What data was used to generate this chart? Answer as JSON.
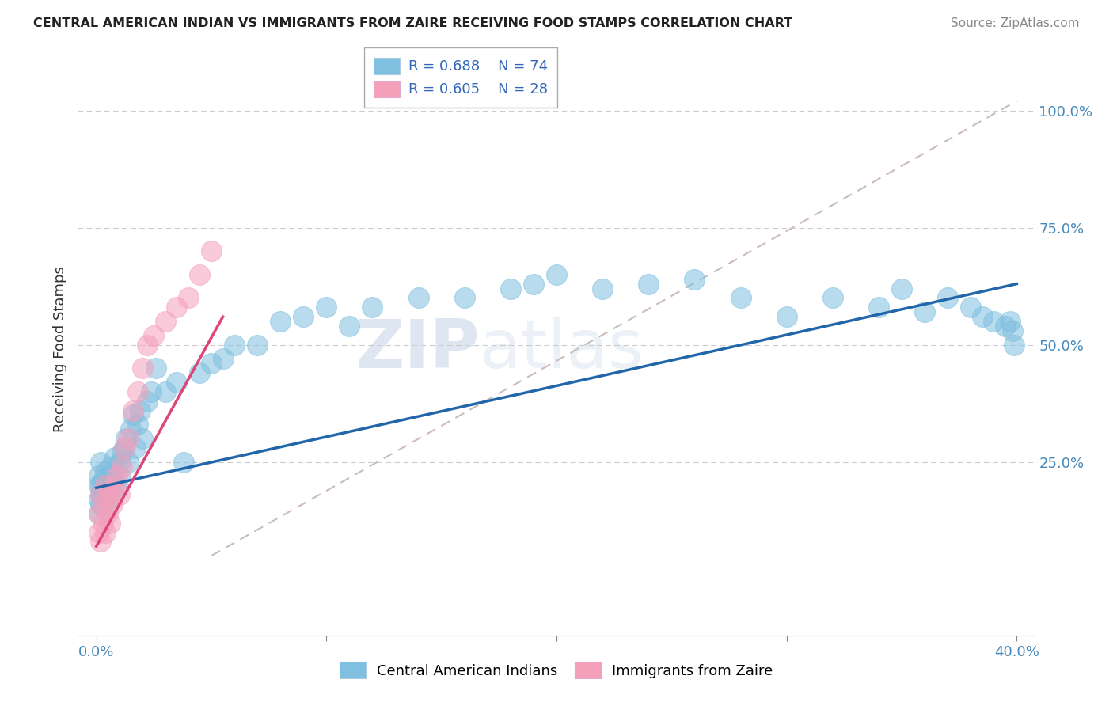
{
  "title": "CENTRAL AMERICAN INDIAN VS IMMIGRANTS FROM ZAIRE RECEIVING FOOD STAMPS CORRELATION CHART",
  "source": "Source: ZipAtlas.com",
  "ylabel": "Receiving Food Stamps",
  "xlim": [
    0.0,
    0.4
  ],
  "ylim": [
    -0.12,
    1.1
  ],
  "legend_r1": "R = 0.688",
  "legend_n1": "N = 74",
  "legend_r2": "R = 0.605",
  "legend_n2": "N = 28",
  "watermark_zip": "ZIP",
  "watermark_atlas": "atlas",
  "blue_color": "#7fbfdf",
  "pink_color": "#f5a0bb",
  "blue_line_color": "#2266aa",
  "pink_line_color": "#dd4477",
  "ref_line_color": "#ccbbbb",
  "grid_color": "#cccccc",
  "blue_x": [
    0.001,
    0.001,
    0.001,
    0.001,
    0.002,
    0.002,
    0.002,
    0.002,
    0.003,
    0.003,
    0.003,
    0.004,
    0.004,
    0.004,
    0.005,
    0.005,
    0.005,
    0.006,
    0.006,
    0.007,
    0.007,
    0.008,
    0.008,
    0.009,
    0.01,
    0.01,
    0.011,
    0.012,
    0.013,
    0.014,
    0.015,
    0.016,
    0.017,
    0.018,
    0.019,
    0.02,
    0.022,
    0.024,
    0.026,
    0.03,
    0.035,
    0.038,
    0.045,
    0.05,
    0.055,
    0.06,
    0.07,
    0.08,
    0.09,
    0.1,
    0.11,
    0.12,
    0.14,
    0.16,
    0.18,
    0.19,
    0.2,
    0.22,
    0.24,
    0.26,
    0.28,
    0.3,
    0.32,
    0.34,
    0.35,
    0.36,
    0.37,
    0.38,
    0.385,
    0.39,
    0.395,
    0.397,
    0.398,
    0.399
  ],
  "blue_y": [
    0.17,
    0.2,
    0.14,
    0.22,
    0.18,
    0.16,
    0.2,
    0.25,
    0.17,
    0.21,
    0.19,
    0.15,
    0.23,
    0.18,
    0.2,
    0.17,
    0.22,
    0.19,
    0.24,
    0.18,
    0.21,
    0.23,
    0.26,
    0.2,
    0.25,
    0.22,
    0.27,
    0.28,
    0.3,
    0.25,
    0.32,
    0.35,
    0.28,
    0.33,
    0.36,
    0.3,
    0.38,
    0.4,
    0.45,
    0.4,
    0.42,
    0.25,
    0.44,
    0.46,
    0.47,
    0.5,
    0.5,
    0.55,
    0.56,
    0.58,
    0.54,
    0.58,
    0.6,
    0.6,
    0.62,
    0.63,
    0.65,
    0.62,
    0.63,
    0.64,
    0.6,
    0.56,
    0.6,
    0.58,
    0.62,
    0.57,
    0.6,
    0.58,
    0.56,
    0.55,
    0.54,
    0.55,
    0.53,
    0.5
  ],
  "pink_x": [
    0.001,
    0.001,
    0.002,
    0.002,
    0.003,
    0.003,
    0.004,
    0.004,
    0.005,
    0.006,
    0.006,
    0.007,
    0.008,
    0.009,
    0.01,
    0.011,
    0.012,
    0.014,
    0.016,
    0.018,
    0.02,
    0.022,
    0.025,
    0.03,
    0.035,
    0.04,
    0.045,
    0.05
  ],
  "pink_y": [
    0.1,
    0.14,
    0.08,
    0.18,
    0.12,
    0.16,
    0.1,
    0.2,
    0.14,
    0.12,
    0.18,
    0.16,
    0.2,
    0.22,
    0.18,
    0.24,
    0.28,
    0.3,
    0.36,
    0.4,
    0.45,
    0.5,
    0.52,
    0.55,
    0.58,
    0.6,
    0.65,
    0.7
  ],
  "blue_line_x": [
    0.0,
    0.4
  ],
  "blue_line_y": [
    0.195,
    0.63
  ],
  "pink_line_x": [
    0.0,
    0.055
  ],
  "pink_line_y": [
    0.07,
    0.56
  ],
  "ref_line_x": [
    0.05,
    0.4
  ],
  "ref_line_y": [
    0.05,
    1.02
  ]
}
